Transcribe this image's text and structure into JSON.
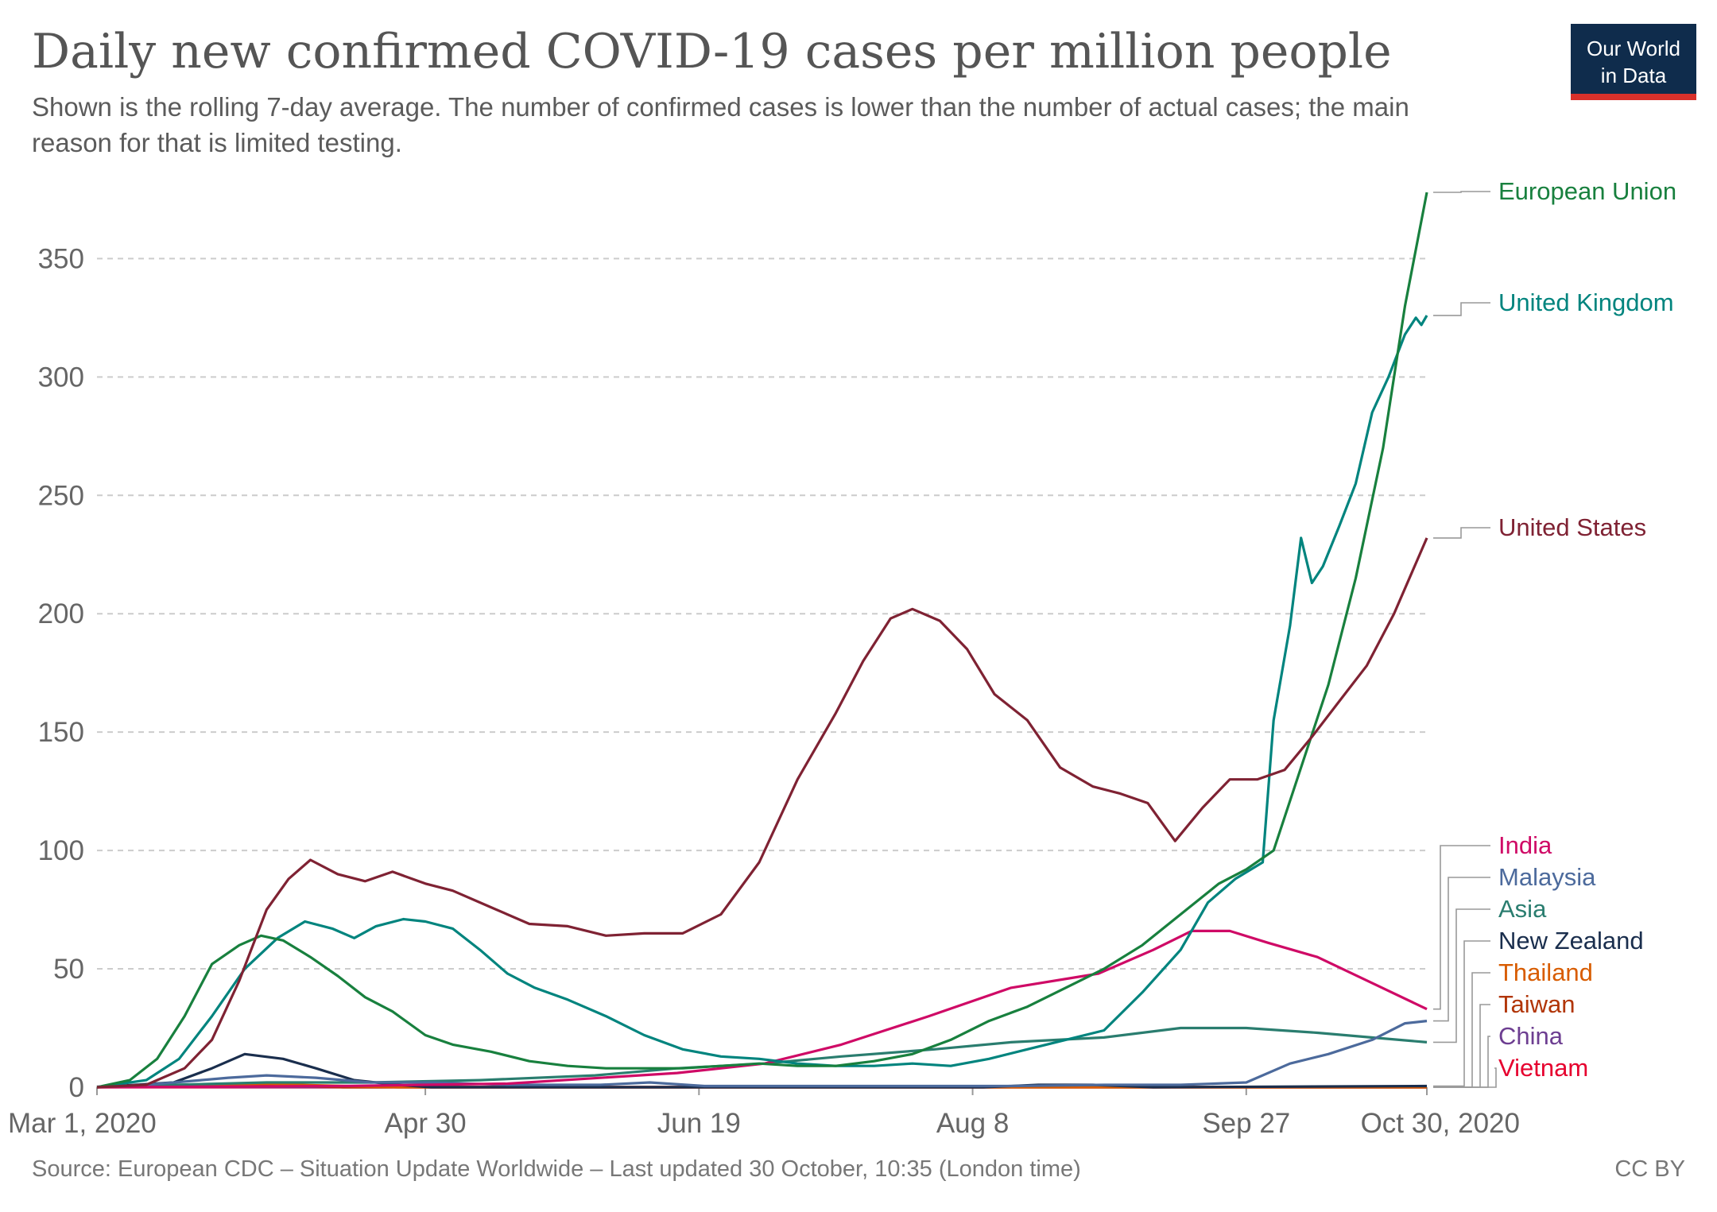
{
  "header": {
    "title": "Daily new confirmed COVID-19 cases per million people",
    "subtitle": "Shown is the rolling 7-day average. The number of confirmed cases is lower than the number of actual cases; the main reason for that is limited testing."
  },
  "logo": {
    "line1": "Our World",
    "line2": "in Data"
  },
  "footer": {
    "source": "Source: European CDC – Situation Update Worldwide – Last updated 30 October, 10:35 (London time)",
    "license": "CC BY"
  },
  "chart_data": {
    "type": "line",
    "x_start": "2020-03-01",
    "x_end": "2020-10-30",
    "xlim": [
      "2020-03-01",
      "2020-10-30"
    ],
    "ylim": [
      0,
      380
    ],
    "grid": true,
    "x_ticks": [
      {
        "date": "2020-03-01",
        "label": "Mar 1, 2020"
      },
      {
        "date": "2020-04-30",
        "label": "Apr 30"
      },
      {
        "date": "2020-06-19",
        "label": "Jun 19"
      },
      {
        "date": "2020-08-08",
        "label": "Aug 8"
      },
      {
        "date": "2020-09-27",
        "label": "Sep 27"
      },
      {
        "date": "2020-10-30",
        "label": "Oct 30, 2020"
      }
    ],
    "y_ticks": [
      0,
      50,
      100,
      150,
      200,
      250,
      300,
      350
    ],
    "legend": "right-end labels",
    "series": [
      {
        "name": "United States",
        "color": "#7f2233",
        "points": [
          [
            "2020-03-01",
            0
          ],
          [
            "2020-03-10",
            1
          ],
          [
            "2020-03-17",
            8
          ],
          [
            "2020-03-22",
            20
          ],
          [
            "2020-03-27",
            45
          ],
          [
            "2020-04-01",
            75
          ],
          [
            "2020-04-05",
            88
          ],
          [
            "2020-04-09",
            96
          ],
          [
            "2020-04-14",
            90
          ],
          [
            "2020-04-19",
            87
          ],
          [
            "2020-04-24",
            91
          ],
          [
            "2020-04-30",
            86
          ],
          [
            "2020-05-05",
            83
          ],
          [
            "2020-05-12",
            76
          ],
          [
            "2020-05-19",
            69
          ],
          [
            "2020-05-26",
            68
          ],
          [
            "2020-06-02",
            64
          ],
          [
            "2020-06-09",
            65
          ],
          [
            "2020-06-16",
            65
          ],
          [
            "2020-06-23",
            73
          ],
          [
            "2020-06-30",
            95
          ],
          [
            "2020-07-07",
            130
          ],
          [
            "2020-07-14",
            158
          ],
          [
            "2020-07-19",
            180
          ],
          [
            "2020-07-24",
            198
          ],
          [
            "2020-07-28",
            202
          ],
          [
            "2020-08-02",
            197
          ],
          [
            "2020-08-07",
            185
          ],
          [
            "2020-08-12",
            166
          ],
          [
            "2020-08-18",
            155
          ],
          [
            "2020-08-24",
            135
          ],
          [
            "2020-08-30",
            127
          ],
          [
            "2020-09-04",
            124
          ],
          [
            "2020-09-09",
            120
          ],
          [
            "2020-09-14",
            104
          ],
          [
            "2020-09-19",
            118
          ],
          [
            "2020-09-24",
            130
          ],
          [
            "2020-09-29",
            130
          ],
          [
            "2020-10-04",
            134
          ],
          [
            "2020-10-09",
            148
          ],
          [
            "2020-10-14",
            163
          ],
          [
            "2020-10-19",
            178
          ],
          [
            "2020-10-24",
            200
          ],
          [
            "2020-10-30",
            232
          ]
        ]
      },
      {
        "name": "European Union",
        "color": "#18803e",
        "points": [
          [
            "2020-03-01",
            0
          ],
          [
            "2020-03-07",
            3
          ],
          [
            "2020-03-12",
            12
          ],
          [
            "2020-03-17",
            30
          ],
          [
            "2020-03-22",
            52
          ],
          [
            "2020-03-27",
            60
          ],
          [
            "2020-03-31",
            64
          ],
          [
            "2020-04-04",
            62
          ],
          [
            "2020-04-09",
            55
          ],
          [
            "2020-04-14",
            47
          ],
          [
            "2020-04-19",
            38
          ],
          [
            "2020-04-24",
            32
          ],
          [
            "2020-04-30",
            22
          ],
          [
            "2020-05-05",
            18
          ],
          [
            "2020-05-12",
            15
          ],
          [
            "2020-05-19",
            11
          ],
          [
            "2020-05-26",
            9
          ],
          [
            "2020-06-02",
            8
          ],
          [
            "2020-06-09",
            8
          ],
          [
            "2020-06-16",
            8
          ],
          [
            "2020-06-23",
            9
          ],
          [
            "2020-06-30",
            10
          ],
          [
            "2020-07-07",
            9
          ],
          [
            "2020-07-14",
            9
          ],
          [
            "2020-07-21",
            11
          ],
          [
            "2020-07-28",
            14
          ],
          [
            "2020-08-04",
            20
          ],
          [
            "2020-08-11",
            28
          ],
          [
            "2020-08-18",
            34
          ],
          [
            "2020-08-25",
            42
          ],
          [
            "2020-09-01",
            50
          ],
          [
            "2020-09-08",
            60
          ],
          [
            "2020-09-15",
            73
          ],
          [
            "2020-09-22",
            86
          ],
          [
            "2020-09-27",
            92
          ],
          [
            "2020-10-02",
            100
          ],
          [
            "2020-10-07",
            135
          ],
          [
            "2020-10-12",
            170
          ],
          [
            "2020-10-17",
            215
          ],
          [
            "2020-10-22",
            270
          ],
          [
            "2020-10-26",
            330
          ],
          [
            "2020-10-30",
            378
          ]
        ]
      },
      {
        "name": "United Kingdom",
        "color": "#00847e",
        "points": [
          [
            "2020-03-01",
            0
          ],
          [
            "2020-03-10",
            3
          ],
          [
            "2020-03-16",
            12
          ],
          [
            "2020-03-22",
            30
          ],
          [
            "2020-03-28",
            50
          ],
          [
            "2020-04-03",
            63
          ],
          [
            "2020-04-08",
            70
          ],
          [
            "2020-04-13",
            67
          ],
          [
            "2020-04-17",
            63
          ],
          [
            "2020-04-21",
            68
          ],
          [
            "2020-04-26",
            71
          ],
          [
            "2020-04-30",
            70
          ],
          [
            "2020-05-05",
            67
          ],
          [
            "2020-05-10",
            58
          ],
          [
            "2020-05-15",
            48
          ],
          [
            "2020-05-20",
            42
          ],
          [
            "2020-05-26",
            37
          ],
          [
            "2020-06-02",
            30
          ],
          [
            "2020-06-09",
            22
          ],
          [
            "2020-06-16",
            16
          ],
          [
            "2020-06-23",
            13
          ],
          [
            "2020-06-30",
            12
          ],
          [
            "2020-07-07",
            10
          ],
          [
            "2020-07-14",
            9
          ],
          [
            "2020-07-21",
            9
          ],
          [
            "2020-07-28",
            10
          ],
          [
            "2020-08-04",
            9
          ],
          [
            "2020-08-11",
            12
          ],
          [
            "2020-08-18",
            16
          ],
          [
            "2020-08-25",
            20
          ],
          [
            "2020-09-01",
            24
          ],
          [
            "2020-09-08",
            40
          ],
          [
            "2020-09-15",
            58
          ],
          [
            "2020-09-20",
            78
          ],
          [
            "2020-09-25",
            88
          ],
          [
            "2020-09-30",
            95
          ],
          [
            "2020-10-02",
            155
          ],
          [
            "2020-10-05",
            195
          ],
          [
            "2020-10-07",
            232
          ],
          [
            "2020-10-09",
            213
          ],
          [
            "2020-10-11",
            220
          ],
          [
            "2020-10-14",
            237
          ],
          [
            "2020-10-17",
            255
          ],
          [
            "2020-10-20",
            285
          ],
          [
            "2020-10-23",
            300
          ],
          [
            "2020-10-26",
            318
          ],
          [
            "2020-10-28",
            325
          ],
          [
            "2020-10-29",
            322
          ],
          [
            "2020-10-30",
            326
          ]
        ]
      },
      {
        "name": "India",
        "color": "#cf0a66",
        "points": [
          [
            "2020-03-01",
            0
          ],
          [
            "2020-04-15",
            0.5
          ],
          [
            "2020-05-15",
            1.5
          ],
          [
            "2020-06-15",
            6
          ],
          [
            "2020-07-01",
            10
          ],
          [
            "2020-07-15",
            18
          ],
          [
            "2020-07-31",
            30
          ],
          [
            "2020-08-15",
            42
          ],
          [
            "2020-08-31",
            48
          ],
          [
            "2020-09-10",
            58
          ],
          [
            "2020-09-17",
            66
          ],
          [
            "2020-09-24",
            66
          ],
          [
            "2020-10-01",
            61
          ],
          [
            "2020-10-10",
            55
          ],
          [
            "2020-10-20",
            44
          ],
          [
            "2020-10-30",
            33
          ]
        ]
      },
      {
        "name": "Malaysia",
        "color": "#4c6a9c",
        "points": [
          [
            "2020-03-01",
            0
          ],
          [
            "2020-03-10",
            1
          ],
          [
            "2020-03-20",
            3
          ],
          [
            "2020-03-25",
            4
          ],
          [
            "2020-04-01",
            5
          ],
          [
            "2020-04-10",
            4
          ],
          [
            "2020-04-20",
            2
          ],
          [
            "2020-05-01",
            2
          ],
          [
            "2020-05-15",
            1
          ],
          [
            "2020-06-01",
            1
          ],
          [
            "2020-06-10",
            2
          ],
          [
            "2020-06-20",
            0.5
          ],
          [
            "2020-07-15",
            0.5
          ],
          [
            "2020-08-15",
            0.5
          ],
          [
            "2020-09-01",
            1
          ],
          [
            "2020-09-15",
            1
          ],
          [
            "2020-09-27",
            2
          ],
          [
            "2020-10-05",
            10
          ],
          [
            "2020-10-12",
            14
          ],
          [
            "2020-10-20",
            20
          ],
          [
            "2020-10-26",
            27
          ],
          [
            "2020-10-30",
            28
          ]
        ]
      },
      {
        "name": "Asia",
        "color": "#2a7d6f",
        "points": [
          [
            "2020-03-01",
            0
          ],
          [
            "2020-03-15",
            1
          ],
          [
            "2020-04-01",
            2
          ],
          [
            "2020-04-20",
            2
          ],
          [
            "2020-05-10",
            3
          ],
          [
            "2020-05-31",
            5
          ],
          [
            "2020-06-15",
            8
          ],
          [
            "2020-07-01",
            10
          ],
          [
            "2020-07-15",
            13
          ],
          [
            "2020-08-01",
            16
          ],
          [
            "2020-08-15",
            19
          ],
          [
            "2020-09-01",
            21
          ],
          [
            "2020-09-15",
            25
          ],
          [
            "2020-09-27",
            25
          ],
          [
            "2020-10-10",
            23
          ],
          [
            "2020-10-30",
            19
          ]
        ]
      },
      {
        "name": "New Zealand",
        "color": "#1a2e4d",
        "points": [
          [
            "2020-03-01",
            0
          ],
          [
            "2020-03-15",
            2
          ],
          [
            "2020-03-22",
            8
          ],
          [
            "2020-03-28",
            14
          ],
          [
            "2020-04-04",
            12
          ],
          [
            "2020-04-10",
            8
          ],
          [
            "2020-04-17",
            3
          ],
          [
            "2020-04-25",
            1
          ],
          [
            "2020-05-01",
            0
          ],
          [
            "2020-08-10",
            0
          ],
          [
            "2020-08-20",
            1
          ],
          [
            "2020-08-30",
            1
          ],
          [
            "2020-09-10",
            0
          ],
          [
            "2020-10-30",
            0.5
          ]
        ]
      },
      {
        "name": "Thailand",
        "color": "#d85c00",
        "points": [
          [
            "2020-03-01",
            0
          ],
          [
            "2020-03-20",
            1
          ],
          [
            "2020-04-01",
            1.5
          ],
          [
            "2020-04-10",
            0.8
          ],
          [
            "2020-04-25",
            0
          ],
          [
            "2020-10-30",
            0
          ]
        ]
      },
      {
        "name": "Taiwan",
        "color": "#b13507",
        "points": [
          [
            "2020-03-01",
            0
          ],
          [
            "2020-03-20",
            1
          ],
          [
            "2020-04-01",
            1
          ],
          [
            "2020-04-15",
            0
          ],
          [
            "2020-10-30",
            0
          ]
        ]
      },
      {
        "name": "China",
        "color": "#6d3e91",
        "points": [
          [
            "2020-03-01",
            0.2
          ],
          [
            "2020-04-01",
            0.1
          ],
          [
            "2020-10-30",
            0
          ]
        ]
      },
      {
        "name": "Vietnam",
        "color": "#e6002e",
        "points": [
          [
            "2020-03-01",
            0
          ],
          [
            "2020-10-30",
            0
          ]
        ]
      }
    ]
  }
}
